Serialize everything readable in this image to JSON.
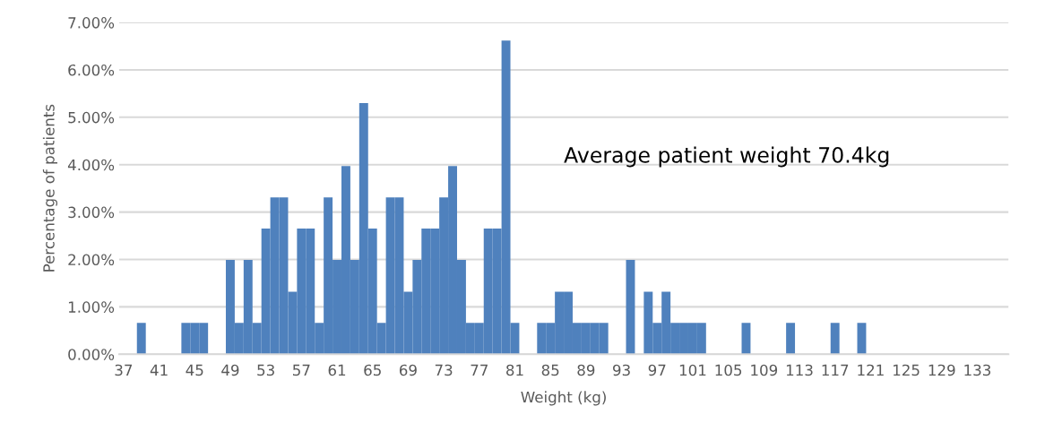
{
  "chart_data": {
    "type": "bar",
    "xlabel": "Weight (kg)",
    "ylabel": "Percentage of patients",
    "annotations": [
      "Average patient weight 70.4kg"
    ],
    "categories": [
      "37",
      null,
      null,
      null,
      "41",
      null,
      null,
      null,
      "45",
      null,
      null,
      null,
      "49",
      null,
      null,
      null,
      "53",
      null,
      null,
      null,
      "57",
      null,
      null,
      null,
      "61",
      null,
      null,
      null,
      "65",
      null,
      null,
      null,
      "69",
      null,
      null,
      null,
      "73",
      null,
      null,
      null,
      "77",
      null,
      null,
      null,
      "81",
      null,
      null,
      null,
      "85",
      null,
      null,
      null,
      "89",
      null,
      null,
      null,
      "93",
      null,
      null,
      null,
      "97",
      null,
      null,
      null,
      "101",
      null,
      null,
      null,
      "105",
      null,
      null,
      null,
      "109",
      null,
      null,
      null,
      "113",
      null,
      null,
      null,
      "117",
      null,
      null,
      null,
      "121",
      null,
      null,
      null,
      "125",
      null,
      null,
      null,
      "129",
      null,
      null,
      null,
      "133",
      null,
      null,
      null
    ],
    "values": [
      0,
      0,
      0.66,
      0,
      0,
      0,
      0,
      0.66,
      0.66,
      0.66,
      0,
      0,
      1.99,
      0.66,
      1.99,
      0.66,
      2.65,
      3.31,
      3.31,
      1.32,
      2.65,
      2.65,
      0.66,
      3.31,
      1.99,
      3.97,
      1.99,
      5.3,
      2.65,
      0.66,
      3.31,
      3.31,
      1.32,
      1.99,
      2.65,
      2.65,
      3.31,
      3.97,
      1.99,
      0.66,
      0.66,
      2.65,
      2.65,
      6.62,
      0.66,
      0,
      0,
      0.66,
      0.66,
      1.32,
      1.32,
      0.66,
      0.66,
      0.66,
      0.66,
      0,
      0,
      1.99,
      0,
      1.32,
      0.66,
      1.32,
      0.66,
      0.66,
      0.66,
      0.66,
      0,
      0,
      0,
      0,
      0.66,
      0,
      0,
      0,
      0,
      0.66,
      0,
      0,
      0,
      0,
      0.66,
      0,
      0,
      0.66,
      0,
      0,
      0,
      0,
      0,
      0,
      0,
      0,
      0,
      0,
      0,
      0,
      0,
      0,
      0,
      0
    ],
    "color": "#4f81bd",
    "ylim": [
      0,
      7
    ],
    "yticks": [
      {
        "value": 0,
        "label": "0.00%"
      },
      {
        "value": 1,
        "label": "1.00%"
      },
      {
        "value": 2,
        "label": "2.00%"
      },
      {
        "value": 3,
        "label": "3.00%"
      },
      {
        "value": 4,
        "label": "4.00%"
      },
      {
        "value": 5,
        "label": "5.00%"
      },
      {
        "value": 6,
        "label": "6.00%"
      },
      {
        "value": 7,
        "label": "7.00%"
      }
    ],
    "grid": "y",
    "legend": false
  }
}
